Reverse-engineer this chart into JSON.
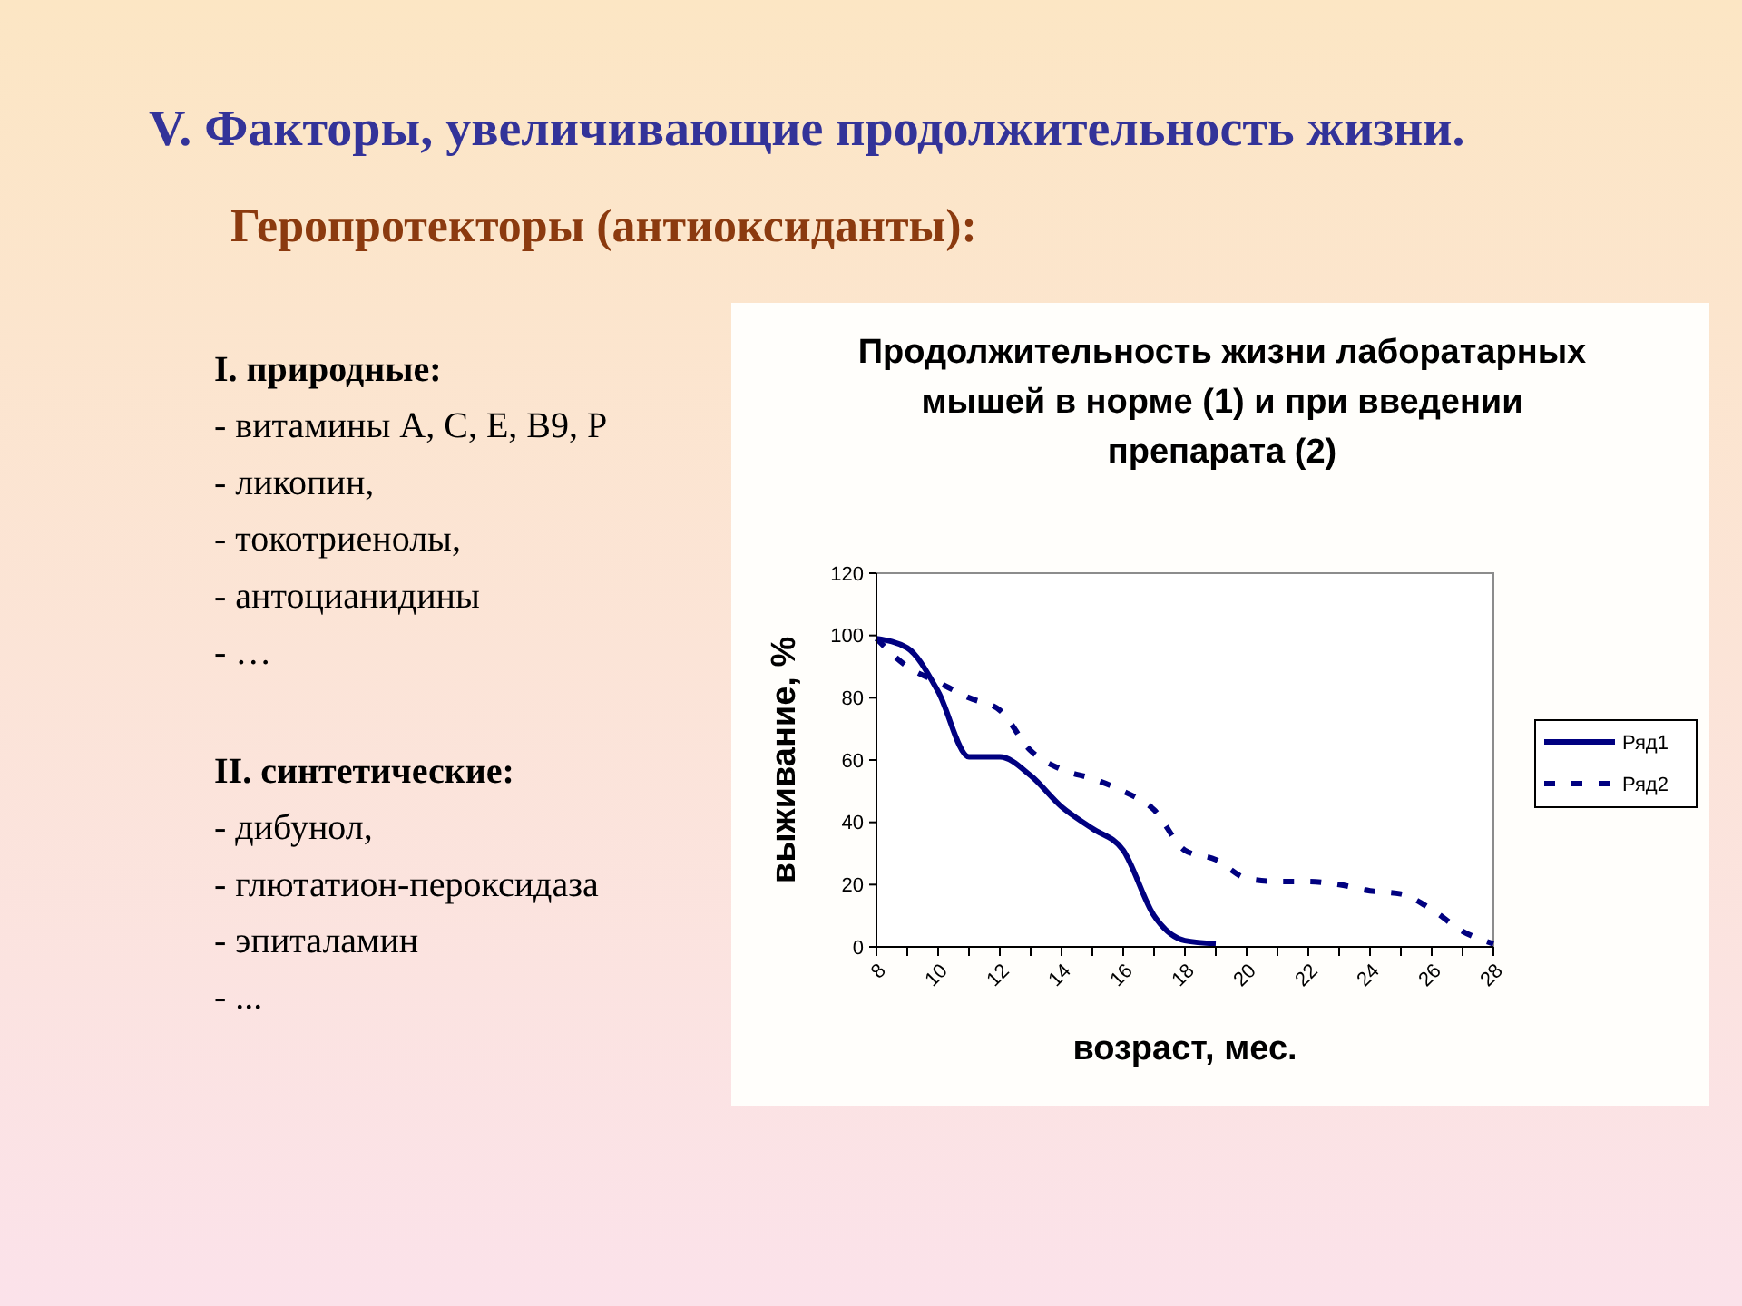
{
  "chart_data": {
    "type": "line",
    "title": "Продолжительность жизни лаборатарных мышей в норме (1) и при введении препарата (2)",
    "xlabel": "возраст, мес.",
    "ylabel": "выживание, %",
    "annotations": [
      "V. Факторы, увеличивающие продолжительность жизни.",
      "Геропротекторы (антиоксиданты):",
      "I. природные:\n- витамины А, С, Е, В9, Р\n- ликопин,\n- токотриенолы,\n- антоцианидины\n- …",
      "II. синтетические:\n- дибунол,\n- глютатион-пероксидаза\n- эпиталамин\n- ..."
    ],
    "x": [
      8,
      9,
      10,
      11,
      12,
      13,
      14,
      15,
      16,
      17,
      18,
      19,
      20,
      21,
      22,
      23,
      24,
      25,
      26,
      27,
      28
    ],
    "series": [
      {
        "name": "Ряд1",
        "color": "#000080",
        "values": [
          99,
          96,
          82,
          61,
          61,
          55,
          45,
          38,
          31,
          10,
          2,
          1,
          null,
          null,
          null,
          null,
          null,
          null,
          null,
          null,
          null
        ]
      },
      {
        "name": "Ряд2",
        "color": "#000080",
        "line_style": "dashed",
        "values": [
          99,
          90,
          85,
          80,
          76,
          63,
          57,
          54,
          50,
          44,
          31,
          28,
          22,
          21,
          21,
          20,
          18,
          17,
          12,
          5,
          1
        ]
      }
    ],
    "xlim": [
      8,
      28
    ],
    "xticks": [
      8,
      {
        "value": 9,
        "label": null
      },
      10,
      {
        "value": 11,
        "label": null
      },
      12,
      {
        "value": 13,
        "label": null
      },
      14,
      {
        "value": 15,
        "label": null
      },
      16,
      {
        "value": 17,
        "label": null
      },
      18,
      {
        "value": 19,
        "label": null
      },
      20,
      {
        "value": 21,
        "label": null
      },
      22,
      {
        "value": 23,
        "label": null
      },
      24,
      {
        "value": 25,
        "label": null
      },
      26,
      {
        "value": 27,
        "label": null
      },
      28
    ],
    "ylim": [
      0,
      120
    ],
    "yticks": [
      0,
      20,
      40,
      60,
      80,
      100,
      120
    ],
    "legend": "right"
  }
}
